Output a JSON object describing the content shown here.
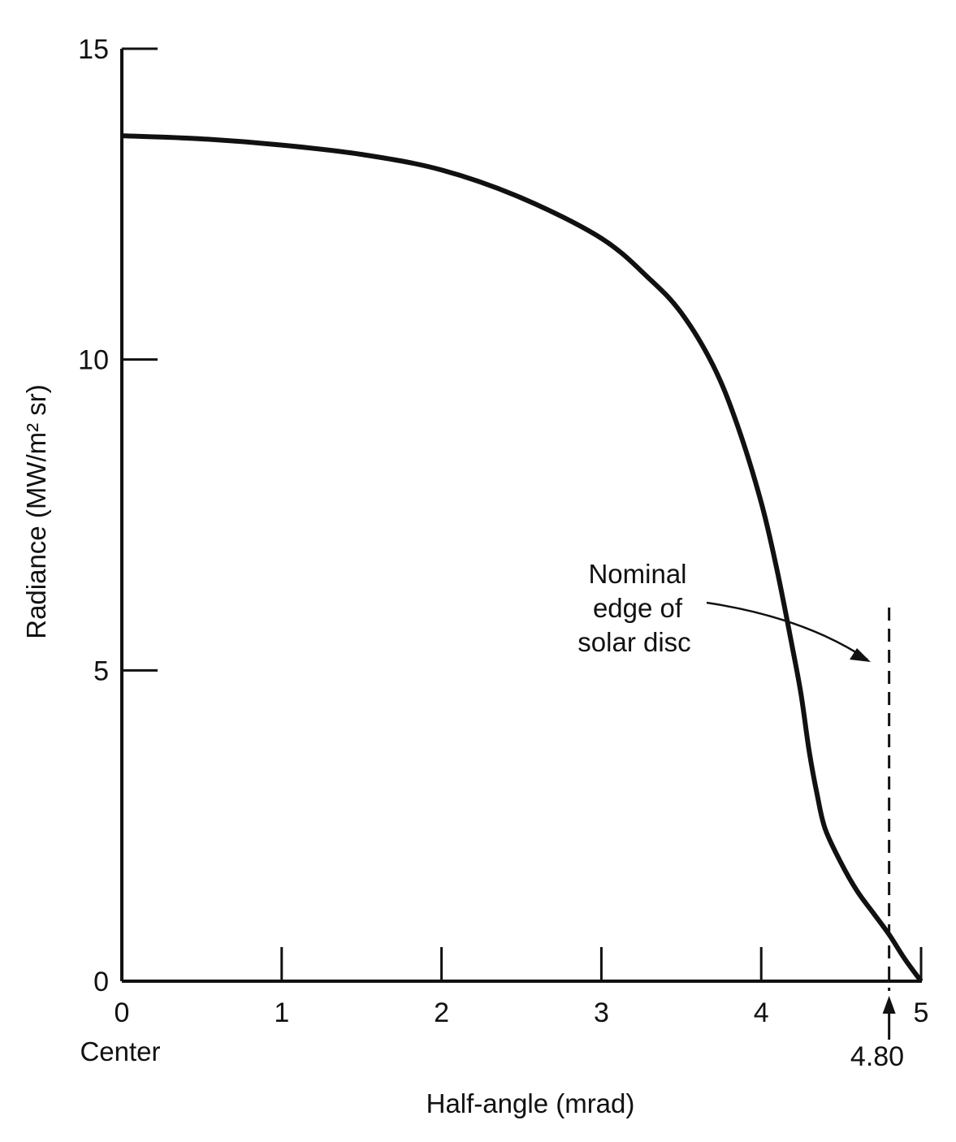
{
  "chart_data": {
    "type": "line",
    "xlabel": "Half-angle (mrad)",
    "ylabel": "Radiance (MW/m² sr)",
    "xlim": [
      0,
      5
    ],
    "ylim": [
      0,
      15
    ],
    "x_ticks": [
      "0",
      "1",
      "2",
      "3",
      "4",
      "5"
    ],
    "y_ticks": [
      "0",
      "5",
      "10",
      "15"
    ],
    "x_sublabel": "Center",
    "series": [
      {
        "x": [
          0,
          0.5,
          1.0,
          1.5,
          2.0,
          2.5,
          3.0,
          3.3,
          3.5,
          3.7,
          3.85,
          4.0,
          4.1,
          4.2,
          4.25,
          4.3,
          4.35,
          4.4,
          4.5,
          4.6,
          4.7,
          4.8,
          4.9,
          5.0
        ],
        "y": [
          13.6,
          13.55,
          13.45,
          13.3,
          13.05,
          12.6,
          11.95,
          11.3,
          10.75,
          9.9,
          8.95,
          7.7,
          6.6,
          5.3,
          4.6,
          3.7,
          3.0,
          2.45,
          1.9,
          1.45,
          1.1,
          0.75,
          0.35,
          0.0
        ]
      }
    ],
    "annotations": {
      "edge_text": [
        "Nominal",
        "edge of",
        "solar disc"
      ],
      "edge_x": 4.8,
      "edge_label": "4.80"
    }
  }
}
